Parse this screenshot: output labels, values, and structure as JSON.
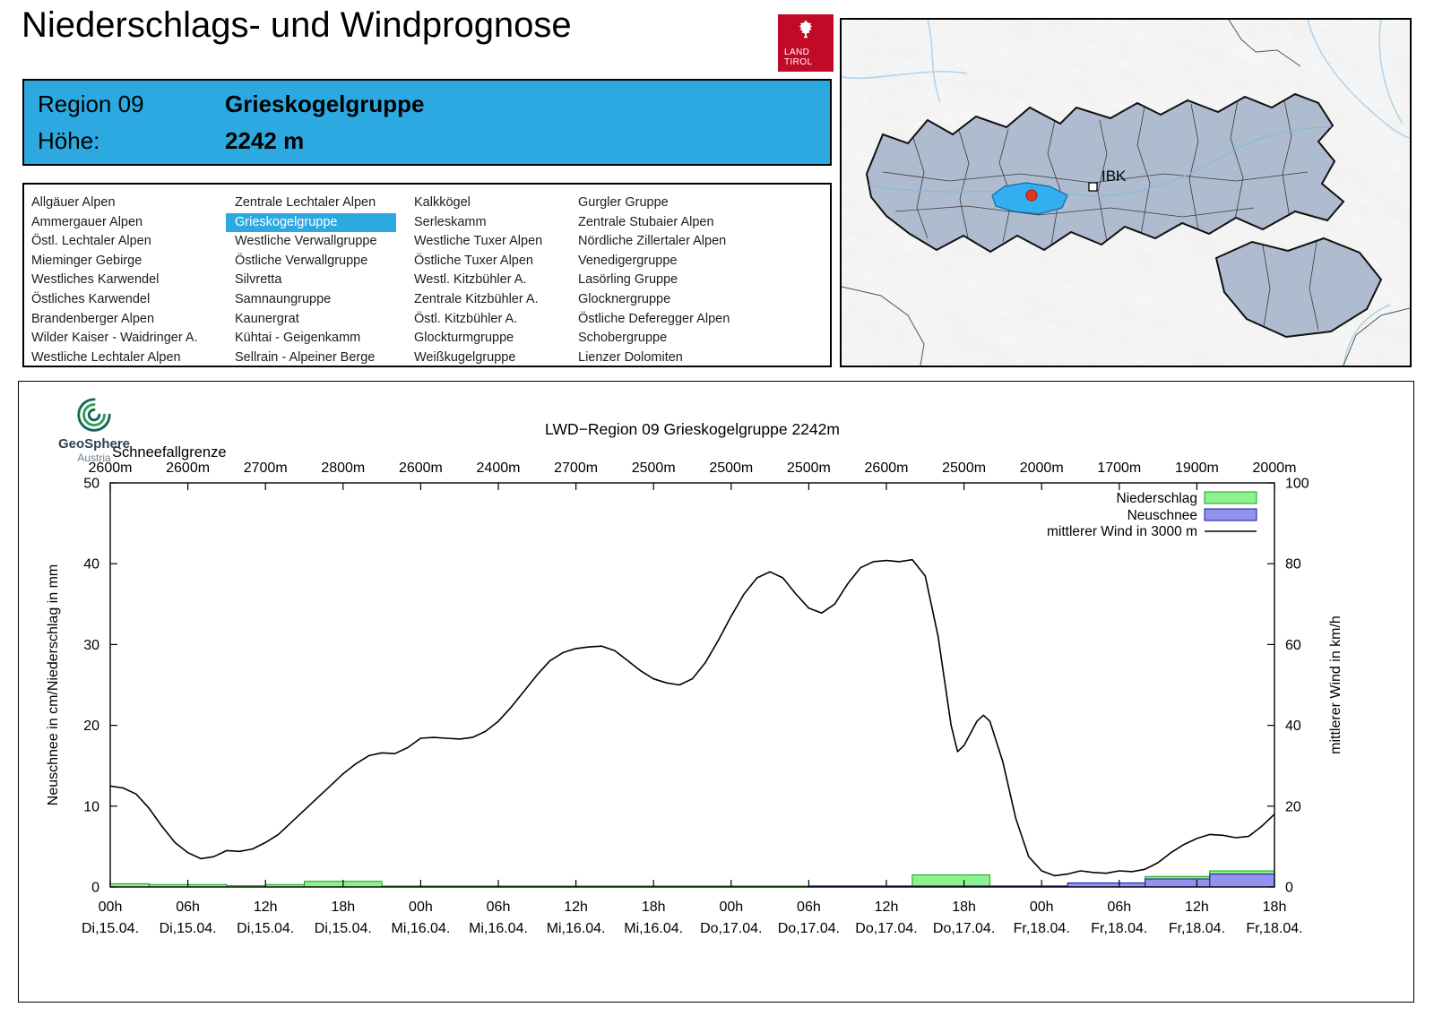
{
  "header": {
    "title": "Niederschlags- und Windprognose",
    "logo": {
      "line1": "LAND",
      "line2": "TIROL"
    }
  },
  "region_info": {
    "region_label": "Region 09",
    "region_name": "Grieskogelgruppe",
    "altitude_label": "Höhe:",
    "altitude_value": "2242 m"
  },
  "region_list": {
    "selected": "Grieskogelgruppe",
    "columns": [
      [
        "Allgäuer Alpen",
        "Ammergauer Alpen",
        "Östl. Lechtaler Alpen",
        "Mieminger Gebirge",
        "Westliches Karwendel",
        "Östliches Karwendel",
        "Brandenberger Alpen",
        "Wilder Kaiser - Waidringer A.",
        "Westliche Lechtaler Alpen"
      ],
      [
        "Zentrale Lechtaler Alpen",
        "Grieskogelgruppe",
        "Westliche Verwallgruppe",
        "Östliche Verwallgruppe",
        "Silvretta",
        "Samnaungruppe",
        "Kaunergrat",
        "Kühtai - Geigenkamm",
        "Sellrain - Alpeiner Berge"
      ],
      [
        "Kalkkögel",
        "Serleskamm",
        "Westliche Tuxer Alpen",
        "Östliche Tuxer Alpen",
        "Westl. Kitzbühler A.",
        "Zentrale Kitzbühler A.",
        "Östl. Kitzbühler A.",
        "Glockturmgruppe",
        "Weißkugelgruppe"
      ],
      [
        "Gurgler Gruppe",
        "Zentrale Stubaier Alpen",
        "Nördliche Zillertaler Alpen",
        "Venedigergruppe",
        "Lasörling Gruppe",
        "Glocknergruppe",
        "Östliche Deferegger Alpen",
        "Schobergruppe",
        "Lienzer Dolomiten"
      ]
    ]
  },
  "map": {
    "city_label": "IBK"
  },
  "geosphere": {
    "name": "GeoSphere",
    "country": "Austria"
  },
  "colors": {
    "accent_blue": "#2da9e1",
    "tirol_red": "#c10a27",
    "precip_green_fill": "#8df28d",
    "precip_green_stroke": "#18a018",
    "snow_blue_fill": "#9393ef",
    "snow_blue_stroke": "#1414a0",
    "map_region_fill": "#a2b2c8",
    "map_selected_fill": "#33aeef"
  },
  "chart_data": {
    "type": "line+bar",
    "title": "LWD−Region 09 Grieskogelgruppe 2242m",
    "snowline": {
      "label": "Schneefallgrenze",
      "values": [
        "2600m",
        "2600m",
        "2700m",
        "2800m",
        "2600m",
        "2400m",
        "2700m",
        "2500m",
        "2500m",
        "2500m",
        "2600m",
        "2500m",
        "2000m",
        "1700m",
        "1900m",
        "2000m"
      ]
    },
    "x_hours_total": 90,
    "x_ticks": [
      {
        "time": "00h",
        "date": "Di,15.04."
      },
      {
        "time": "06h",
        "date": "Di,15.04."
      },
      {
        "time": "12h",
        "date": "Di,15.04."
      },
      {
        "time": "18h",
        "date": "Di,15.04."
      },
      {
        "time": "00h",
        "date": "Mi,16.04."
      },
      {
        "time": "06h",
        "date": "Mi,16.04."
      },
      {
        "time": "12h",
        "date": "Mi,16.04."
      },
      {
        "time": "18h",
        "date": "Mi,16.04."
      },
      {
        "time": "00h",
        "date": "Do,17.04."
      },
      {
        "time": "06h",
        "date": "Do,17.04."
      },
      {
        "time": "12h",
        "date": "Do,17.04."
      },
      {
        "time": "18h",
        "date": "Do,17.04."
      },
      {
        "time": "00h",
        "date": "Fr,18.04."
      },
      {
        "time": "06h",
        "date": "Fr,18.04."
      },
      {
        "time": "12h",
        "date": "Fr,18.04."
      },
      {
        "time": "18h",
        "date": "Fr,18.04."
      }
    ],
    "left_axis": {
      "label": "Neuschnee in cm/Niederschlag in mm",
      "min": 0,
      "max": 50,
      "ticks": [
        0,
        10,
        20,
        30,
        40,
        50
      ]
    },
    "right_axis": {
      "label": "mittlerer Wind in km/h",
      "min": 0,
      "max": 100,
      "ticks": [
        0,
        20,
        40,
        60,
        80,
        100
      ]
    },
    "legend": [
      {
        "label": "Niederschlag",
        "kind": "box",
        "fill": "#8df28d",
        "stroke": "#18a018"
      },
      {
        "label": "Neuschnee",
        "kind": "box",
        "fill": "#9393ef",
        "stroke": "#1414a0"
      },
      {
        "label": "mittlerer Wind in 3000 m",
        "kind": "line",
        "stroke": "#000000"
      }
    ],
    "wind_kmh": [
      [
        0,
        25
      ],
      [
        1,
        24.5
      ],
      [
        2,
        23
      ],
      [
        3,
        19.5
      ],
      [
        4,
        15
      ],
      [
        5,
        11
      ],
      [
        6,
        8.5
      ],
      [
        7,
        7
      ],
      [
        8,
        7.5
      ],
      [
        9,
        9
      ],
      [
        10,
        8.8
      ],
      [
        11,
        9.4
      ],
      [
        12,
        11
      ],
      [
        13,
        13
      ],
      [
        14,
        16
      ],
      [
        15,
        19
      ],
      [
        16,
        22
      ],
      [
        17,
        25
      ],
      [
        18,
        28
      ],
      [
        19,
        30.5
      ],
      [
        20,
        32.5
      ],
      [
        21,
        33.2
      ],
      [
        22,
        33
      ],
      [
        23,
        34.5
      ],
      [
        24,
        36.8
      ],
      [
        25,
        37
      ],
      [
        26,
        36.8
      ],
      [
        27,
        36.6
      ],
      [
        28,
        37
      ],
      [
        29,
        38.5
      ],
      [
        30,
        41
      ],
      [
        31,
        44.5
      ],
      [
        32,
        48.5
      ],
      [
        33,
        52.5
      ],
      [
        34,
        56
      ],
      [
        35,
        58
      ],
      [
        36,
        59
      ],
      [
        37,
        59.4
      ],
      [
        38,
        59.6
      ],
      [
        39,
        58.5
      ],
      [
        40,
        56
      ],
      [
        41,
        53.5
      ],
      [
        42,
        51.5
      ],
      [
        43,
        50.5
      ],
      [
        44,
        50
      ],
      [
        45,
        51.5
      ],
      [
        46,
        55.5
      ],
      [
        47,
        61
      ],
      [
        48,
        67
      ],
      [
        49,
        72.5
      ],
      [
        50,
        76.5
      ],
      [
        51,
        78
      ],
      [
        52,
        76.5
      ],
      [
        53,
        72.5
      ],
      [
        54,
        69
      ],
      [
        55,
        67.8
      ],
      [
        56,
        70
      ],
      [
        57,
        75
      ],
      [
        58,
        79
      ],
      [
        59,
        80.5
      ],
      [
        60,
        80.8
      ],
      [
        61,
        80.5
      ],
      [
        62,
        81
      ],
      [
        63,
        77
      ],
      [
        64,
        62
      ],
      [
        65,
        40
      ],
      [
        65.5,
        33.5
      ],
      [
        66,
        35
      ],
      [
        67,
        41
      ],
      [
        67.5,
        42.5
      ],
      [
        68,
        41
      ],
      [
        69,
        31
      ],
      [
        70,
        17
      ],
      [
        71,
        7.5
      ],
      [
        72,
        4
      ],
      [
        73,
        2.8
      ],
      [
        74,
        3.2
      ],
      [
        75,
        4
      ],
      [
        76,
        3.6
      ],
      [
        77,
        3.4
      ],
      [
        78,
        4
      ],
      [
        79,
        3.8
      ],
      [
        80,
        4.4
      ],
      [
        81,
        6
      ],
      [
        82,
        8.5
      ],
      [
        83,
        10.5
      ],
      [
        84,
        12
      ],
      [
        85,
        13
      ],
      [
        86,
        12.8
      ],
      [
        87,
        12.2
      ],
      [
        88,
        12.5
      ],
      [
        89,
        15
      ],
      [
        90,
        18
      ]
    ],
    "precip_mm": [
      {
        "from": 0,
        "to": 3,
        "mm": 0.4
      },
      {
        "from": 3,
        "to": 9,
        "mm": 0.3
      },
      {
        "from": 9,
        "to": 12,
        "mm": 0.15
      },
      {
        "from": 12,
        "to": 15,
        "mm": 0.3
      },
      {
        "from": 15,
        "to": 21,
        "mm": 0.7
      },
      {
        "from": 21,
        "to": 62,
        "mm": 0.12
      },
      {
        "from": 62,
        "to": 68,
        "mm": 1.5
      },
      {
        "from": 68,
        "to": 80,
        "mm": 0.12
      },
      {
        "from": 80,
        "to": 85,
        "mm": 1.3
      },
      {
        "from": 85,
        "to": 90,
        "mm": 2
      }
    ],
    "snow_cm": [
      {
        "from": 54,
        "to": 74,
        "cm": 0.12
      },
      {
        "from": 74,
        "to": 80,
        "cm": 0.5
      },
      {
        "from": 80,
        "to": 85,
        "cm": 1.0
      },
      {
        "from": 85,
        "to": 90,
        "cm": 1.6
      }
    ]
  }
}
